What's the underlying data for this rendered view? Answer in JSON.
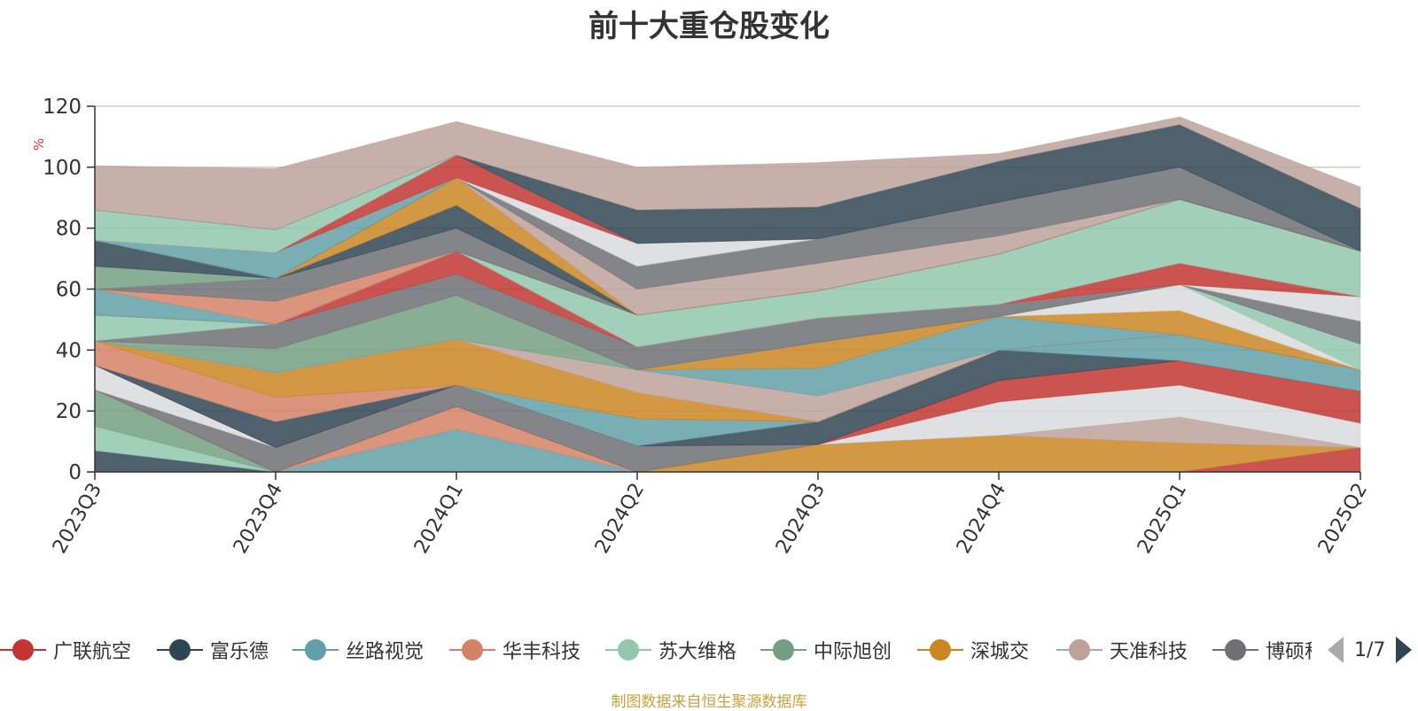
{
  "title": "前十大重仓股变化",
  "source_note": "制图数据来自恒生聚源数据库",
  "legend_pager": {
    "label": "1/7"
  },
  "legend": [
    {
      "name": "广联航空",
      "color": "#c23531"
    },
    {
      "name": "富乐德",
      "color": "#2f4554"
    },
    {
      "name": "丝路视觉",
      "color": "#61a0a8"
    },
    {
      "name": "华丰科技",
      "color": "#d48265"
    },
    {
      "name": "苏大维格",
      "color": "#91c7ae"
    },
    {
      "name": "中际旭创",
      "color": "#749f83"
    },
    {
      "name": "深城交",
      "color": "#ca8622"
    },
    {
      "name": "天准科技",
      "color": "#bda29a"
    },
    {
      "name": "博硕科技",
      "color": "#6e7074"
    }
  ],
  "chart_data": {
    "type": "area",
    "stacked": true,
    "ylabel": "%",
    "ylim": [
      0,
      120
    ],
    "yticks": [
      0,
      20,
      40,
      60,
      80,
      100,
      120
    ],
    "categories": [
      "2023Q3",
      "2023Q4",
      "2024Q1",
      "2024Q2",
      "2024Q3",
      "2024Q4",
      "2025Q1",
      "2025Q2"
    ],
    "grid": true,
    "layers": [
      {
        "color": "#2f4554",
        "values": [
          0,
          0,
          0,
          0,
          0,
          0,
          0,
          0
        ]
      },
      {
        "color": "#2f4554",
        "values": [
          7,
          0,
          0,
          0,
          0,
          0,
          0,
          0
        ]
      },
      {
        "color": "#91c7ae",
        "values": [
          8,
          0,
          0,
          0,
          0,
          0,
          0,
          0
        ]
      },
      {
        "color": "#749f83",
        "values": [
          12,
          0,
          0,
          0,
          0,
          0,
          0,
          0
        ]
      },
      {
        "color": "#61a0a8",
        "values": [
          0,
          0,
          14,
          0,
          0,
          0,
          0,
          0
        ]
      },
      {
        "color": "#d48265",
        "values": [
          0,
          0,
          7.5,
          0,
          0,
          0,
          0,
          0
        ]
      },
      {
        "color": "#c23531",
        "values": [
          0,
          0,
          0,
          0,
          0,
          0,
          0,
          8
        ]
      },
      {
        "color": "#ca8622",
        "values": [
          0,
          0,
          0,
          0,
          9,
          12,
          9.5,
          0
        ]
      },
      {
        "color": "#bda29a",
        "values": [
          0,
          0,
          0,
          0,
          0,
          0,
          8.5,
          0
        ]
      },
      {
        "color": "#6e7074",
        "values": [
          0,
          8,
          7,
          8.5,
          0,
          0,
          0,
          0
        ]
      },
      {
        "color": "#d9dadd",
        "values": [
          8,
          0,
          0,
          0,
          0,
          11,
          10.5,
          8
        ]
      },
      {
        "color": "#c23531",
        "values": [
          0,
          0,
          0,
          0,
          0,
          7,
          8,
          10.5
        ]
      },
      {
        "color": "#2f4554",
        "values": [
          0,
          8.5,
          0,
          0,
          7.5,
          10,
          0,
          0
        ]
      },
      {
        "color": "#61a0a8",
        "values": [
          0,
          0,
          0,
          9,
          0,
          0,
          8.5,
          7
        ]
      },
      {
        "color": "#d48265",
        "values": [
          8,
          8,
          0,
          0,
          0,
          0,
          0,
          0
        ]
      },
      {
        "color": "#ca8622",
        "values": [
          0,
          8,
          15,
          8.5,
          0,
          0,
          0,
          0
        ]
      },
      {
        "color": "#bda29a",
        "values": [
          0,
          0,
          0,
          7.5,
          8.5,
          0,
          0,
          0
        ]
      },
      {
        "color": "#61a0a8",
        "values": [
          0,
          0,
          0,
          0,
          9,
          11,
          0,
          0
        ]
      },
      {
        "color": "#ca8622",
        "values": [
          0,
          0,
          0,
          0,
          8.5,
          0,
          8,
          0
        ]
      },
      {
        "color": "#d9dadd",
        "values": [
          0,
          0,
          0,
          0,
          0,
          0,
          8.5,
          0
        ]
      },
      {
        "color": "#91c7ae",
        "values": [
          0,
          0,
          0,
          0,
          0,
          0,
          0,
          8.5
        ]
      },
      {
        "color": "#749f83",
        "values": [
          0,
          8,
          14.5,
          0,
          0,
          0,
          0,
          0
        ]
      },
      {
        "color": "#6e7074",
        "values": [
          0,
          8,
          7,
          7.5,
          8,
          4,
          0,
          7.5
        ]
      },
      {
        "color": "#91c7ae",
        "values": [
          8.5,
          0,
          0,
          0,
          0,
          0,
          0,
          0
        ]
      },
      {
        "color": "#c23531",
        "values": [
          0,
          0,
          7.5,
          0,
          0,
          0,
          0,
          0
        ]
      },
      {
        "color": "#d9dadd",
        "values": [
          0,
          0,
          0,
          0,
          0,
          0,
          0,
          8
        ]
      },
      {
        "color": "#c23531",
        "values": [
          0,
          0,
          0,
          0,
          0,
          0,
          7,
          0
        ]
      },
      {
        "color": "#91c7ae",
        "values": [
          0,
          0,
          0,
          10.5,
          9,
          16.5,
          21,
          15
        ]
      },
      {
        "color": "#61a0a8",
        "values": [
          8.5,
          0,
          0,
          0,
          0,
          0,
          0,
          0
        ]
      },
      {
        "color": "#d48265",
        "values": [
          0,
          7.5,
          0,
          0,
          0,
          0,
          0,
          0
        ]
      },
      {
        "color": "#6e7074",
        "values": [
          0,
          7.5,
          7.5,
          0,
          0,
          0,
          0,
          0
        ]
      },
      {
        "color": "#749f83",
        "values": [
          7.5,
          0,
          0,
          0,
          0,
          0,
          0,
          0
        ]
      },
      {
        "color": "#2f4554",
        "values": [
          8.5,
          0,
          7.5,
          0,
          0,
          0,
          0,
          0
        ]
      },
      {
        "color": "#ca8622",
        "values": [
          0,
          0,
          9,
          0,
          0,
          0,
          0,
          0
        ]
      },
      {
        "color": "#bda29a",
        "values": [
          0,
          0,
          0,
          8.5,
          9,
          6,
          0,
          0
        ]
      },
      {
        "color": "#6e7074",
        "values": [
          0,
          0,
          0,
          7.5,
          8,
          11,
          10.5,
          0
        ]
      },
      {
        "color": "#61a0a8",
        "values": [
          0,
          8.5,
          0,
          0,
          0,
          0,
          0,
          0
        ]
      },
      {
        "color": "#d9dadd",
        "values": [
          0,
          0,
          0,
          7.5,
          0,
          0,
          0,
          0
        ]
      },
      {
        "color": "#c23531",
        "values": [
          0,
          0,
          7.5,
          0,
          0,
          0,
          0,
          0
        ]
      },
      {
        "color": "#91c7ae",
        "values": [
          10,
          7.5,
          0,
          0,
          0,
          0,
          0,
          0
        ]
      },
      {
        "color": "#2f4554",
        "values": [
          0,
          0,
          0,
          11,
          10.5,
          13.5,
          14,
          14
        ]
      },
      {
        "color": "#bda29a",
        "values": [
          14.5,
          20,
          11,
          14,
          14.5,
          2.5,
          2.5,
          7
        ]
      }
    ]
  }
}
